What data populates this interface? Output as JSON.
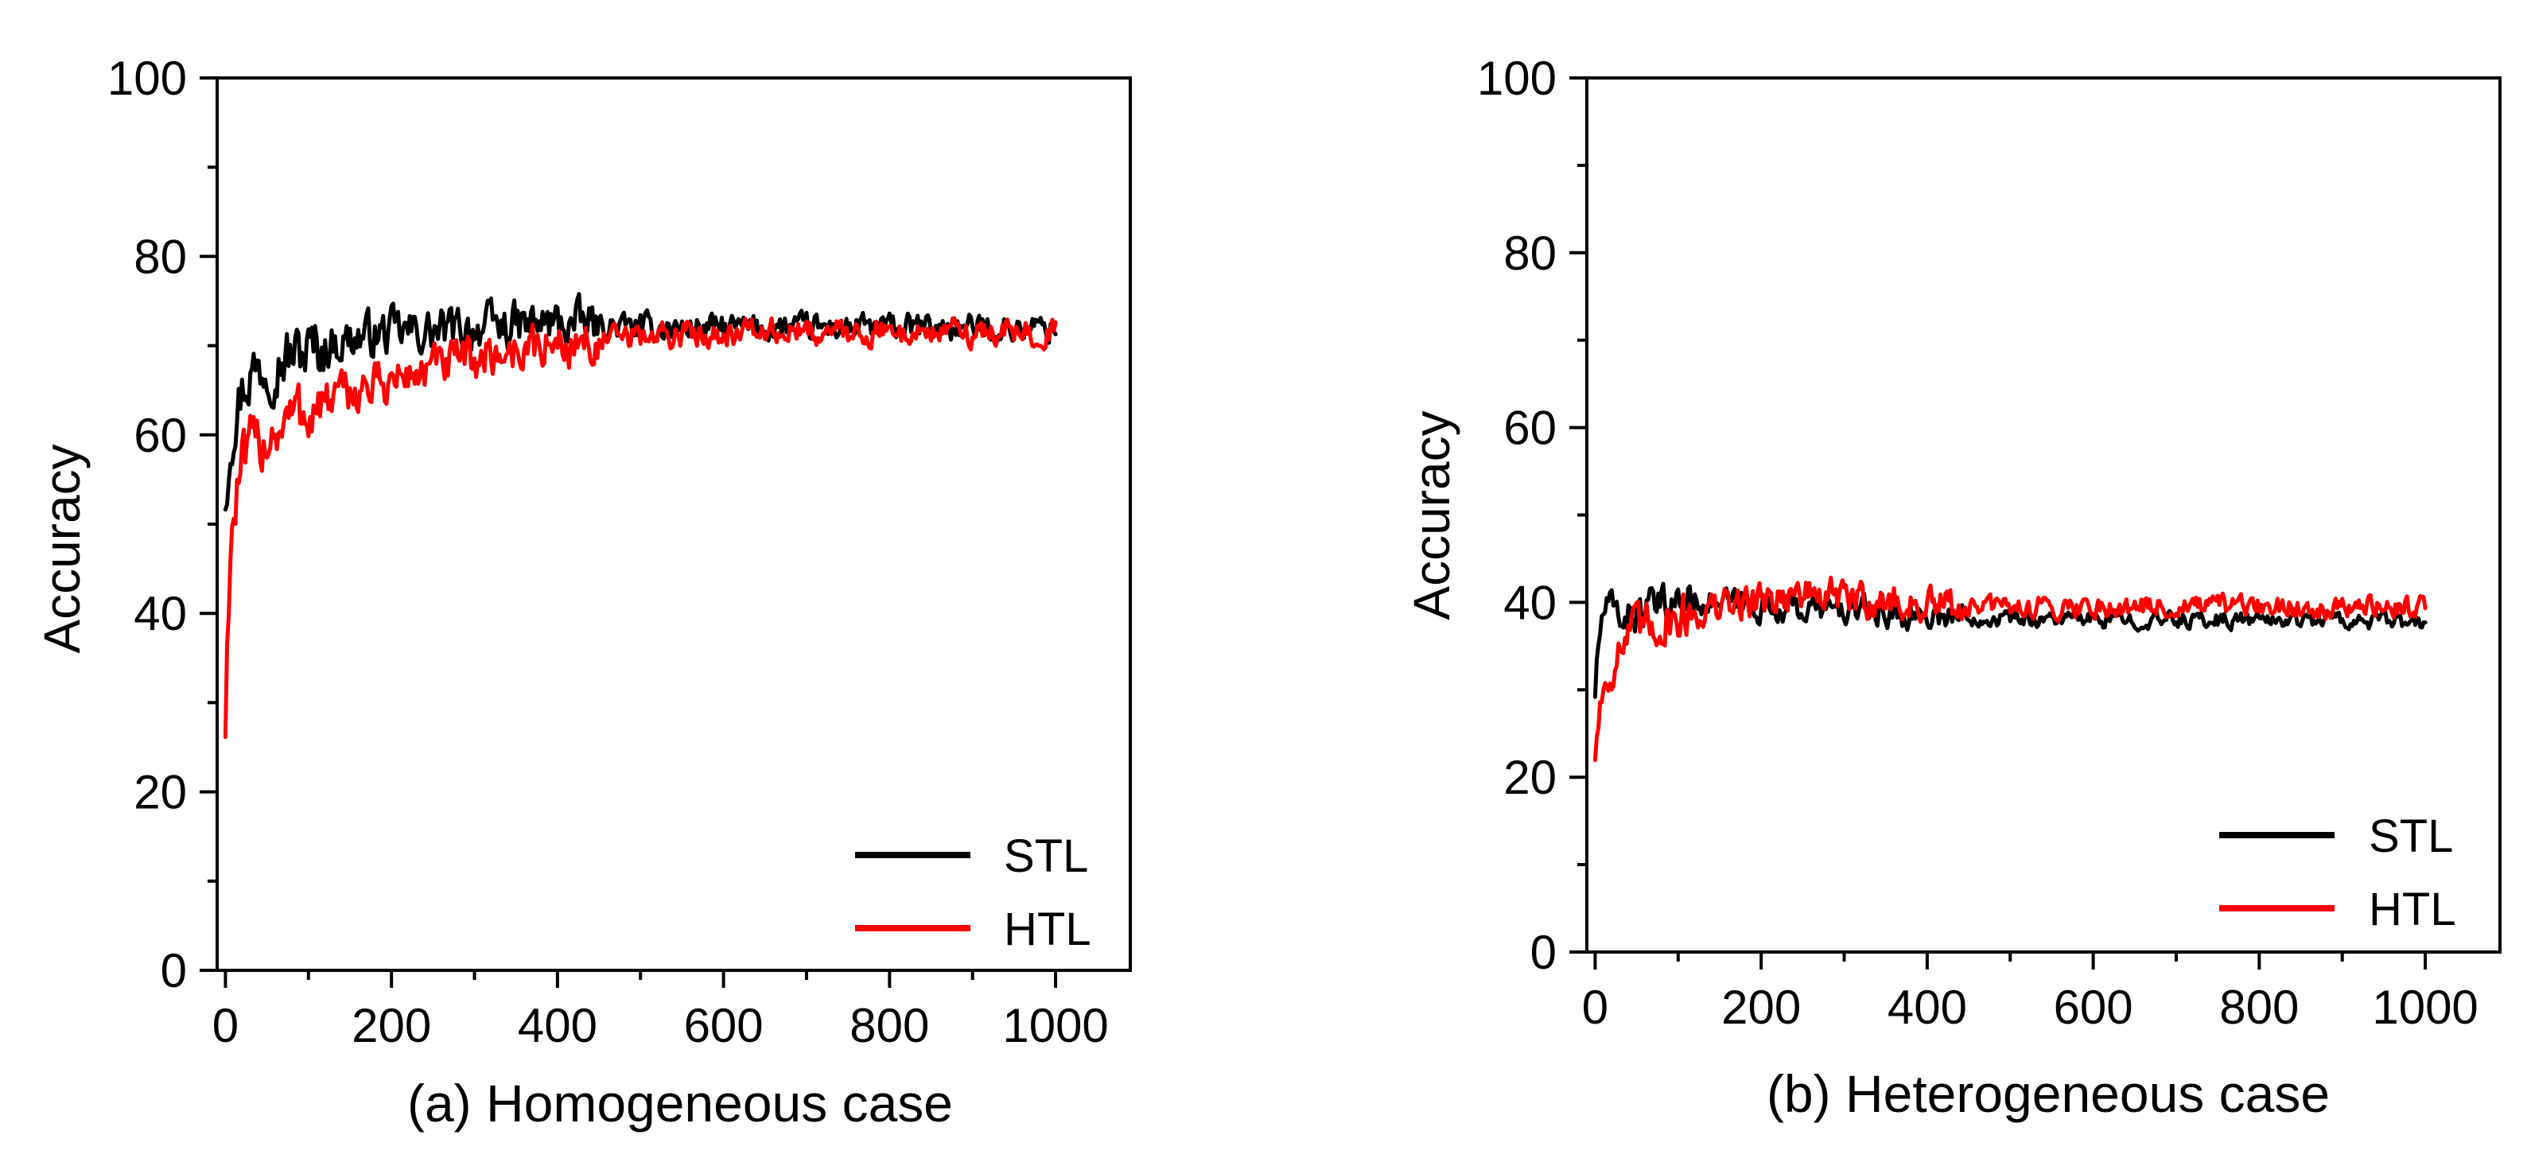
{
  "chart_data": [
    {
      "id": "a",
      "type": "line",
      "title": "(a) Homogeneous case",
      "xlabel": "",
      "ylabel": "Accuracy",
      "xlim": [
        -10,
        1090
      ],
      "ylim": [
        0,
        100
      ],
      "xticks": [
        0,
        200,
        400,
        600,
        800,
        1000
      ],
      "yticks": [
        0,
        20,
        40,
        60,
        80,
        100
      ],
      "grid": false,
      "legend_position": "bottom-right",
      "series": [
        {
          "name": "STL",
          "color": "#000000",
          "noise": 1.6,
          "x": [
            0,
            5,
            10,
            20,
            30,
            50,
            80,
            120,
            160,
            200,
            250,
            300,
            350,
            400,
            450,
            500,
            600,
            700,
            800,
            900,
            1000
          ],
          "values": [
            53,
            59,
            62,
            65,
            67,
            68,
            69,
            70,
            71,
            71.5,
            71.5,
            72,
            72.2,
            72.5,
            72.3,
            72,
            72,
            72,
            72,
            72,
            72
          ]
        },
        {
          "name": "HTL",
          "color": "#ff0000",
          "noise": 1.6,
          "x": [
            0,
            3,
            6,
            10,
            15,
            20,
            30,
            50,
            80,
            120,
            160,
            200,
            250,
            300,
            350,
            400,
            450,
            500,
            600,
            700,
            800,
            900,
            1000
          ],
          "values": [
            27.5,
            40,
            47,
            51,
            54,
            56,
            58,
            60,
            62,
            63.5,
            65,
            66,
            67.5,
            68.5,
            69.5,
            70,
            70.5,
            71,
            71.5,
            71.5,
            71.5,
            71.5,
            71.5
          ]
        }
      ]
    },
    {
      "id": "b",
      "type": "line",
      "title": "(b) Heterogeneous case",
      "xlabel": "",
      "ylabel": "Accuracy",
      "xlim": [
        -10,
        1090
      ],
      "ylim": [
        0,
        100
      ],
      "xticks": [
        0,
        200,
        400,
        600,
        800,
        1000
      ],
      "yticks": [
        0,
        20,
        40,
        60,
        80,
        100
      ],
      "grid": false,
      "legend_position": "bottom-right",
      "series": [
        {
          "name": "STL",
          "color": "#000000",
          "noise": 1.0,
          "x": [
            0,
            5,
            10,
            20,
            40,
            60,
            80,
            100,
            120,
            150,
            200,
            300,
            400,
            500,
            600,
            700,
            800,
            900,
            1000
          ],
          "values": [
            30,
            36,
            39,
            39,
            38.5,
            39,
            39.5,
            40,
            40.5,
            40,
            39.5,
            39,
            38.5,
            38.2,
            38,
            38,
            38,
            38,
            37.5
          ]
        },
        {
          "name": "HTL",
          "color": "#ff0000",
          "noise": 1.3,
          "x": [
            0,
            5,
            10,
            20,
            40,
            60,
            80,
            100,
            130,
            160,
            200,
            250,
            300,
            350,
            400,
            500,
            600,
            700,
            800,
            900,
            1000
          ],
          "values": [
            23,
            28,
            30,
            33,
            36,
            37,
            38,
            38.5,
            39,
            39.5,
            40.5,
            41,
            40.5,
            40,
            39.5,
            39.5,
            39.5,
            39.5,
            39.5,
            39.5,
            39.5
          ]
        }
      ]
    }
  ]
}
